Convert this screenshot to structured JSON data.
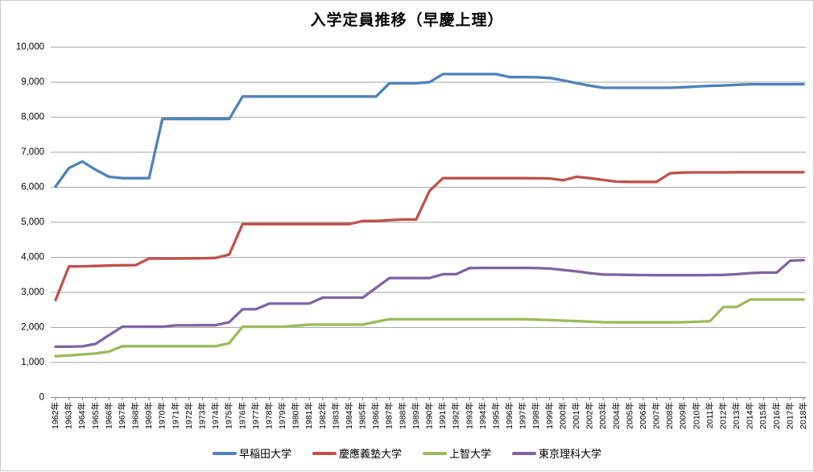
{
  "chart_data": {
    "type": "line",
    "title": "入学定員推移（早慶上理）",
    "xlabel": "",
    "ylabel": "",
    "ylim": [
      0,
      10000
    ],
    "grid": true,
    "legend_position": "bottom",
    "y_tick_labels": [
      "0",
      "1,000",
      "2,000",
      "3,000",
      "4,000",
      "5,000",
      "6,000",
      "7,000",
      "8,000",
      "9,000",
      "10,000"
    ],
    "categories": [
      "1962年",
      "1963年",
      "1964年",
      "1965年",
      "1966年",
      "1967年",
      "1968年",
      "1969年",
      "1970年",
      "1971年",
      "1972年",
      "1973年",
      "1974年",
      "1975年",
      "1976年",
      "1977年",
      "1978年",
      "1979年",
      "1980年",
      "1981年",
      "1982年",
      "1983年",
      "1984年",
      "1985年",
      "1986年",
      "1987年",
      "1988年",
      "1989年",
      "1990年",
      "1991年",
      "1992年",
      "1993年",
      "1994年",
      "1995年",
      "1996年",
      "1997年",
      "1998年",
      "1999年",
      "2000年",
      "2001年",
      "2002年",
      "2003年",
      "2004年",
      "2005年",
      "2006年",
      "2007年",
      "2008年",
      "2009年",
      "2010年",
      "2011年",
      "2012年",
      "2013年",
      "2014年",
      "2015年",
      "2016年",
      "2017年",
      "2018年"
    ],
    "series": [
      {
        "key": "waseda",
        "name": "早稲田大学",
        "color": "#4F81BD",
        "values": [
          6020,
          6550,
          6735,
          6500,
          6300,
          6260,
          6260,
          6260,
          7950,
          7950,
          7950,
          7950,
          7950,
          7950,
          8590,
          8590,
          8590,
          8590,
          8590,
          8590,
          8590,
          8590,
          8590,
          8590,
          8590,
          8970,
          8970,
          8970,
          9000,
          9230,
          9230,
          9230,
          9230,
          9230,
          9145,
          9145,
          9140,
          9120,
          9050,
          8970,
          8900,
          8840,
          8840,
          8840,
          8840,
          8840,
          8840,
          8855,
          8875,
          8895,
          8905,
          8925,
          8940,
          8940,
          8940,
          8940,
          8940
        ]
      },
      {
        "key": "keio",
        "name": "慶應義塾大学",
        "color": "#C0504D",
        "values": [
          2780,
          3740,
          3745,
          3755,
          3765,
          3775,
          3780,
          3965,
          3965,
          3965,
          3970,
          3975,
          3985,
          4080,
          4950,
          4950,
          4950,
          4950,
          4950,
          4950,
          4950,
          4950,
          4950,
          5040,
          5040,
          5060,
          5080,
          5080,
          5900,
          6260,
          6260,
          6260,
          6260,
          6260,
          6260,
          6260,
          6255,
          6250,
          6200,
          6300,
          6260,
          6210,
          6160,
          6155,
          6155,
          6155,
          6400,
          6420,
          6425,
          6425,
          6425,
          6430,
          6430,
          6430,
          6430,
          6430,
          6430
        ]
      },
      {
        "key": "sophia",
        "name": "上智大学",
        "color": "#9BBB59",
        "values": [
          1180,
          1200,
          1230,
          1255,
          1310,
          1465,
          1465,
          1465,
          1465,
          1465,
          1465,
          1465,
          1465,
          1550,
          2020,
          2020,
          2020,
          2020,
          2050,
          2080,
          2080,
          2080,
          2080,
          2080,
          2160,
          2235,
          2235,
          2235,
          2235,
          2235,
          2235,
          2235,
          2235,
          2235,
          2235,
          2235,
          2220,
          2210,
          2195,
          2180,
          2165,
          2150,
          2145,
          2145,
          2145,
          2145,
          2145,
          2150,
          2160,
          2180,
          2585,
          2585,
          2795,
          2795,
          2795,
          2795,
          2795
        ]
      },
      {
        "key": "tus",
        "name": "東京理科大学",
        "color": "#8064A2",
        "values": [
          1450,
          1450,
          1460,
          1530,
          1780,
          2020,
          2020,
          2020,
          2020,
          2060,
          2060,
          2065,
          2065,
          2150,
          2520,
          2520,
          2680,
          2680,
          2680,
          2680,
          2850,
          2850,
          2850,
          2850,
          3130,
          3410,
          3410,
          3410,
          3410,
          3520,
          3520,
          3695,
          3700,
          3700,
          3700,
          3700,
          3695,
          3680,
          3640,
          3600,
          3550,
          3510,
          3505,
          3500,
          3495,
          3490,
          3490,
          3490,
          3490,
          3495,
          3500,
          3520,
          3550,
          3565,
          3565,
          3905,
          3920
        ]
      }
    ]
  }
}
